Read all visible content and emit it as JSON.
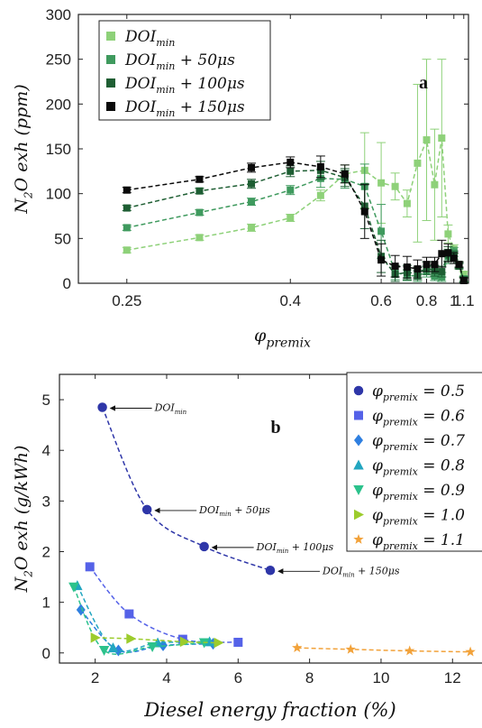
{
  "chart_data": [
    {
      "type": "line",
      "panel_label": "a",
      "xlabel": "φpremix",
      "ylabel": "N2O exh (ppm)",
      "x_scale": "reciprocal",
      "xlim": [
        0.225,
        1.155
      ],
      "ylim": [
        0,
        300
      ],
      "xticks": [
        0.25,
        0.4,
        0.6,
        0.8,
        1,
        1.1
      ],
      "yticks": [
        0,
        50,
        100,
        150,
        200,
        250,
        300
      ],
      "grid": false,
      "legend_position": "top-left",
      "series": [
        {
          "name": "DOImin",
          "color": "#8ed179",
          "marker": "square",
          "points": [
            {
              "x": 0.25,
              "y": 37,
              "err": 3
            },
            {
              "x": 0.3,
              "y": 51,
              "err": 3
            },
            {
              "x": 0.35,
              "y": 62,
              "err": 4
            },
            {
              "x": 0.4,
              "y": 73,
              "err": 4
            },
            {
              "x": 0.45,
              "y": 98,
              "err": 6
            },
            {
              "x": 0.5,
              "y": 122,
              "err": 10
            },
            {
              "x": 0.55,
              "y": 126,
              "err": 42
            },
            {
              "x": 0.6,
              "y": 112,
              "err": 45
            },
            {
              "x": 0.65,
              "y": 108,
              "err": 15
            },
            {
              "x": 0.7,
              "y": 89,
              "err": 15
            },
            {
              "x": 0.75,
              "y": 134,
              "err": 88
            },
            {
              "x": 0.8,
              "y": 160,
              "err": 90
            },
            {
              "x": 0.85,
              "y": 110,
              "err": 62
            },
            {
              "x": 0.9,
              "y": 162,
              "err": 88
            },
            {
              "x": 0.95,
              "y": 55,
              "err": 10
            },
            {
              "x": 1.0,
              "y": 38,
              "err": 5
            },
            {
              "x": 1.05,
              "y": 21,
              "err": 3
            },
            {
              "x": 1.1,
              "y": 10,
              "err": 3
            }
          ]
        },
        {
          "name": "DOImin + 50μs",
          "color": "#3f9a5e",
          "marker": "square",
          "points": [
            {
              "x": 0.25,
              "y": 62,
              "err": 3
            },
            {
              "x": 0.3,
              "y": 79,
              "err": 3
            },
            {
              "x": 0.35,
              "y": 91,
              "err": 4
            },
            {
              "x": 0.4,
              "y": 104,
              "err": 5
            },
            {
              "x": 0.45,
              "y": 117,
              "err": 10
            },
            {
              "x": 0.5,
              "y": 116,
              "err": 10
            },
            {
              "x": 0.55,
              "y": 108,
              "err": 25
            },
            {
              "x": 0.6,
              "y": 58,
              "err": 30
            },
            {
              "x": 0.65,
              "y": 12,
              "err": 8
            },
            {
              "x": 0.7,
              "y": 9,
              "err": 6
            },
            {
              "x": 0.75,
              "y": 8,
              "err": 6
            },
            {
              "x": 0.8,
              "y": 13,
              "err": 6
            },
            {
              "x": 0.85,
              "y": 8,
              "err": 5
            },
            {
              "x": 0.9,
              "y": 7,
              "err": 5
            },
            {
              "x": 0.95,
              "y": 30,
              "err": 8
            },
            {
              "x": 1.0,
              "y": 35,
              "err": 5
            },
            {
              "x": 1.05,
              "y": 20,
              "err": 3
            },
            {
              "x": 1.1,
              "y": 5,
              "err": 3
            }
          ]
        },
        {
          "name": "DOImin + 100μs",
          "color": "#1e5e33",
          "marker": "square",
          "points": [
            {
              "x": 0.25,
              "y": 84,
              "err": 3
            },
            {
              "x": 0.3,
              "y": 103,
              "err": 3
            },
            {
              "x": 0.35,
              "y": 111,
              "err": 5
            },
            {
              "x": 0.4,
              "y": 125,
              "err": 6
            },
            {
              "x": 0.45,
              "y": 126,
              "err": 10
            },
            {
              "x": 0.5,
              "y": 118,
              "err": 10
            },
            {
              "x": 0.55,
              "y": 86,
              "err": 25
            },
            {
              "x": 0.6,
              "y": 30,
              "err": 18
            },
            {
              "x": 0.65,
              "y": 10,
              "err": 8
            },
            {
              "x": 0.7,
              "y": 12,
              "err": 8
            },
            {
              "x": 0.75,
              "y": 11,
              "err": 7
            },
            {
              "x": 0.8,
              "y": 17,
              "err": 7
            },
            {
              "x": 0.85,
              "y": 14,
              "err": 6
            },
            {
              "x": 0.9,
              "y": 13,
              "err": 6
            },
            {
              "x": 0.95,
              "y": 33,
              "err": 8
            },
            {
              "x": 1.0,
              "y": 31,
              "err": 5
            },
            {
              "x": 1.05,
              "y": 19,
              "err": 3
            },
            {
              "x": 1.1,
              "y": 4,
              "err": 3
            }
          ]
        },
        {
          "name": "DOImin + 150μs",
          "color": "#0a0a0a",
          "marker": "square",
          "points": [
            {
              "x": 0.25,
              "y": 104,
              "err": 3
            },
            {
              "x": 0.3,
              "y": 116,
              "err": 3
            },
            {
              "x": 0.35,
              "y": 129,
              "err": 5
            },
            {
              "x": 0.4,
              "y": 135,
              "err": 6
            },
            {
              "x": 0.45,
              "y": 130,
              "err": 12
            },
            {
              "x": 0.5,
              "y": 122,
              "err": 10
            },
            {
              "x": 0.55,
              "y": 80,
              "err": 30
            },
            {
              "x": 0.6,
              "y": 26,
              "err": 18
            },
            {
              "x": 0.65,
              "y": 19,
              "err": 12
            },
            {
              "x": 0.7,
              "y": 18,
              "err": 12
            },
            {
              "x": 0.75,
              "y": 16,
              "err": 10
            },
            {
              "x": 0.8,
              "y": 21,
              "err": 8
            },
            {
              "x": 0.85,
              "y": 21,
              "err": 8
            },
            {
              "x": 0.9,
              "y": 33,
              "err": 15
            },
            {
              "x": 0.95,
              "y": 34,
              "err": 10
            },
            {
              "x": 1.0,
              "y": 28,
              "err": 6
            },
            {
              "x": 1.05,
              "y": 21,
              "err": 3
            },
            {
              "x": 1.1,
              "y": 3,
              "err": 3
            }
          ]
        }
      ]
    },
    {
      "type": "scatter",
      "panel_label": "b",
      "xlabel": "Diesel energy fraction (%)",
      "ylabel": "N2O exh (g/kWh)",
      "xlim": [
        1,
        12.8
      ],
      "ylim": [
        -0.2,
        5.5
      ],
      "xticks": [
        2,
        4,
        6,
        8,
        10,
        12
      ],
      "yticks": [
        0,
        1,
        2,
        3,
        4,
        5
      ],
      "grid": false,
      "legend_position": "top-right",
      "series": [
        {
          "name": "φpremix = 0.5",
          "color": "#2e36a8",
          "marker": "circle",
          "x": [
            2.2,
            3.45,
            5.05,
            6.9
          ],
          "y": [
            4.85,
            2.83,
            2.1,
            1.63
          ]
        },
        {
          "name": "φpremix = 0.6",
          "color": "#5562e8",
          "marker": "square",
          "x": [
            1.85,
            2.95,
            4.45,
            6.0
          ],
          "y": [
            1.7,
            0.77,
            0.27,
            0.21
          ]
        },
        {
          "name": "φpremix = 0.7",
          "color": "#2f7fe0",
          "marker": "diamond",
          "x": [
            1.6,
            2.65,
            3.9,
            5.3
          ],
          "y": [
            0.85,
            0.05,
            0.15,
            0.18
          ]
        },
        {
          "name": "φpremix = 0.8",
          "color": "#22a6c0",
          "marker": "triangle-up",
          "x": [
            1.5,
            2.5,
            3.75,
            5.2
          ],
          "y": [
            1.33,
            0.1,
            0.2,
            0.22
          ]
        },
        {
          "name": "φpremix = 0.9",
          "color": "#2cc28c",
          "marker": "triangle-down",
          "x": [
            1.4,
            2.25,
            3.6,
            5.05
          ],
          "y": [
            1.3,
            0.05,
            0.12,
            0.2
          ]
        },
        {
          "name": "φpremix = 1.0",
          "color": "#9ccc2c",
          "marker": "triangle-right",
          "x": [
            2.0,
            3.0,
            4.5,
            5.45
          ],
          "y": [
            0.3,
            0.28,
            0.22,
            0.2
          ]
        },
        {
          "name": "φpremix = 1.1",
          "color": "#f2a23a",
          "marker": "star",
          "x": [
            7.65,
            9.15,
            10.8,
            12.5
          ],
          "y": [
            0.1,
            0.07,
            0.04,
            0.02
          ]
        }
      ],
      "annotations": [
        {
          "label": "DOImin",
          "x": 2.2,
          "y": 4.85
        },
        {
          "label": "DOImin + 50μs",
          "x": 3.45,
          "y": 2.83
        },
        {
          "label": "DOImin + 100μs",
          "x": 5.05,
          "y": 2.1
        },
        {
          "label": "DOImin + 150μs",
          "x": 6.9,
          "y": 1.63
        }
      ]
    }
  ]
}
